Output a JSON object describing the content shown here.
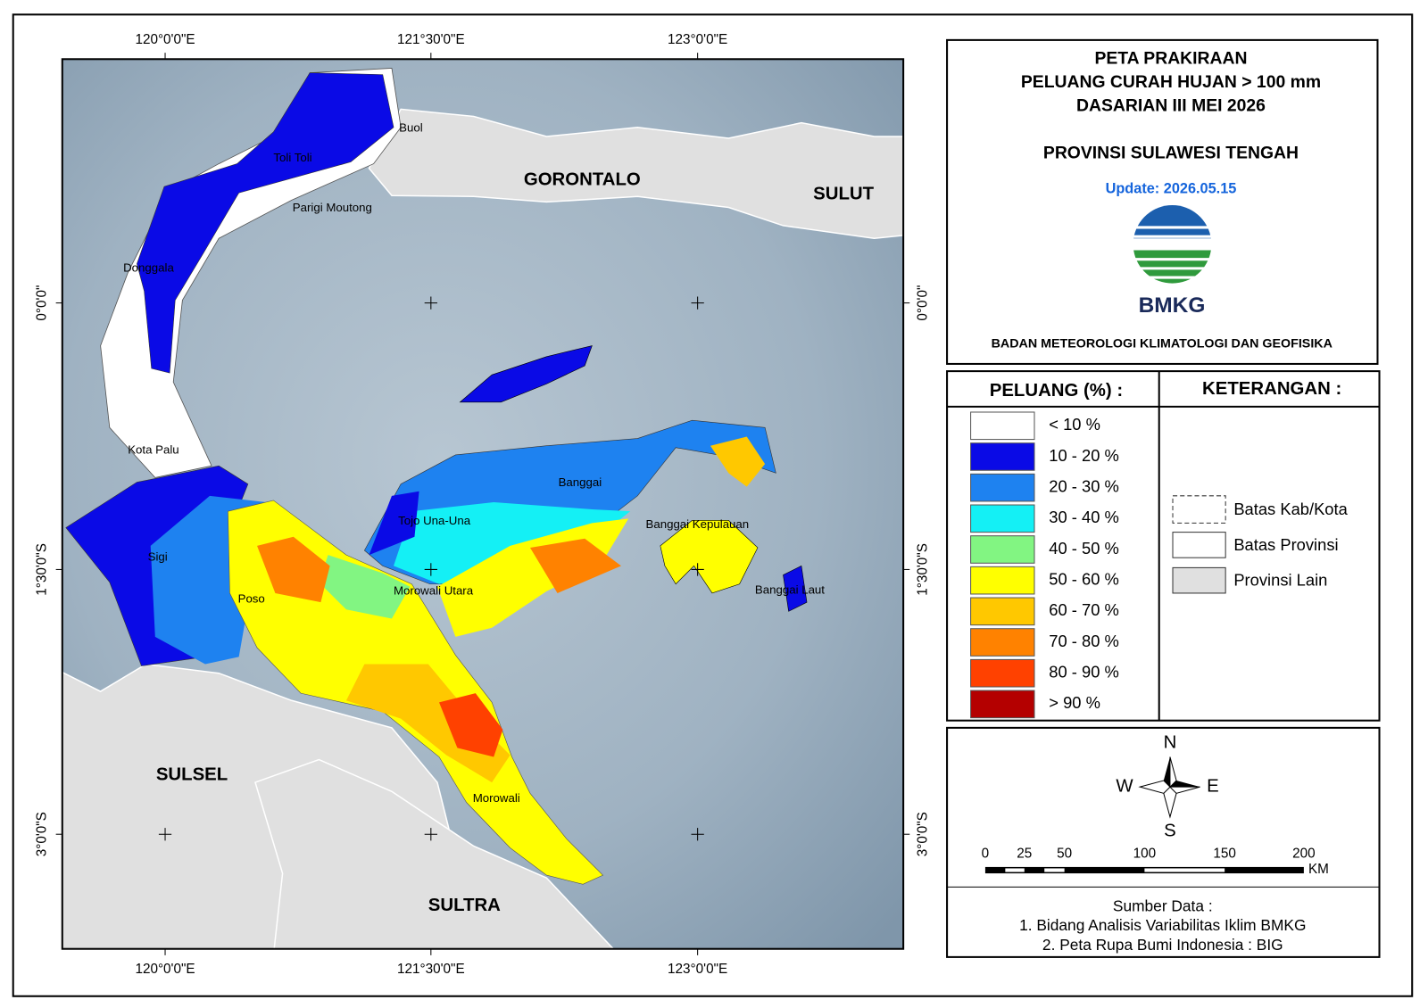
{
  "map": {
    "lon_labels": [
      "120°0'0\"E",
      "121°30'0\"E",
      "123°0'0\"E"
    ],
    "lat_labels": [
      "0°0'0\"",
      "1°30'0\"S",
      "3°0'0\"S"
    ],
    "places": [
      "Buol",
      "Toli Toli",
      "GORONTALO",
      "SULUT",
      "Parigi Moutong",
      "Donggala",
      "Kota Palu",
      "Sigi",
      "Poso",
      "Tojo Una-Una",
      "Banggai",
      "Banggai Kepulauan",
      "Banggai Laut",
      "Morowali Utara",
      "Morowali",
      "SULSEL",
      "SULTRA"
    ]
  },
  "header": {
    "title_lines": [
      "PETA PRAKIRAAN",
      "PELUANG CURAH HUJAN > 100 mm",
      "DASARIAN III MEI 2026"
    ],
    "province": "PROVINSI SULAWESI TENGAH",
    "update": "Update: 2026.05.15",
    "logo_text": "BMKG",
    "agency": "BADAN METEOROLOGI KLIMATOLOGI DAN GEOFISIKA"
  },
  "legend": {
    "title": "PELUANG (%) :",
    "items": [
      {
        "label": "< 10 %",
        "color": "#ffffff"
      },
      {
        "label": "10 - 20 %",
        "color": "#0a0ae6"
      },
      {
        "label": "20 - 30 %",
        "color": "#1e82f0"
      },
      {
        "label": "30 - 40 %",
        "color": "#14f0f5"
      },
      {
        "label": "40 - 50 %",
        "color": "#82f582"
      },
      {
        "label": "50 - 60 %",
        "color": "#ffff00"
      },
      {
        "label": "60 - 70 %",
        "color": "#ffc800"
      },
      {
        "label": "70 - 80 %",
        "color": "#ff8200"
      },
      {
        "label": "80 - 90 %",
        "color": "#ff4100"
      },
      {
        "label": "> 90 %",
        "color": "#b40000"
      }
    ]
  },
  "notes": {
    "title": "KETERANGAN :",
    "items": [
      "Batas Kab/Kota",
      "Batas Provinsi",
      "Provinsi Lain"
    ]
  },
  "compass": {
    "n": "N",
    "w": "W",
    "e": "E",
    "s": "S"
  },
  "scale": {
    "labels": [
      "0",
      "25",
      "50",
      "100",
      "150",
      "200"
    ],
    "unit": "KM"
  },
  "source": {
    "title": "Sumber Data :",
    "lines": [
      "1. Bidang Analisis Variabilitas Iklim BMKG",
      "2. Peta Rupa Bumi Indonesia : BIG"
    ]
  }
}
